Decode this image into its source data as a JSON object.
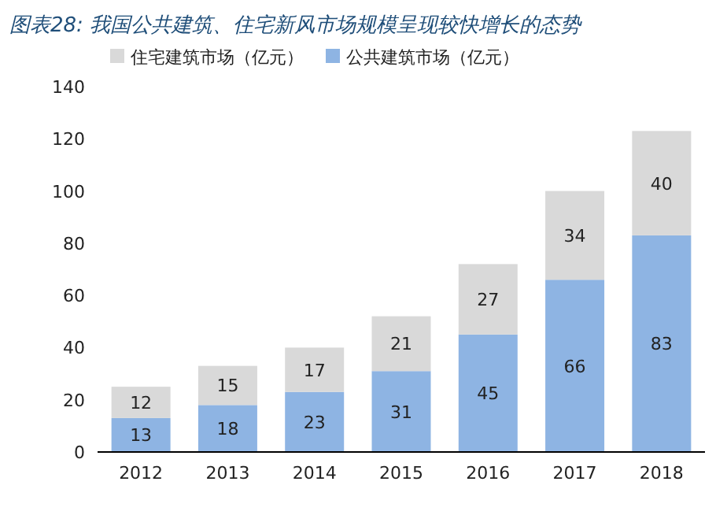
{
  "chart_data": {
    "type": "bar",
    "title": "图表28: 我国公共建筑、住宅新风市场规模呈现较快增长的态势",
    "categories": [
      "2012",
      "2013",
      "2014",
      "2015",
      "2016",
      "2017",
      "2018"
    ],
    "stacked": true,
    "series": [
      {
        "name": "公共建筑市场（亿元）",
        "color": "#8eb4e3",
        "values": [
          13,
          18,
          23,
          31,
          45,
          66,
          83
        ]
      },
      {
        "name": "住宅建筑市场（亿元）",
        "color": "#d9d9d9",
        "values": [
          12,
          15,
          17,
          21,
          27,
          34,
          40
        ]
      }
    ],
    "ylim": [
      0,
      140
    ],
    "yticks": [
      0,
      20,
      40,
      60,
      80,
      100,
      120,
      140
    ],
    "data_labels": true,
    "legend": "top left",
    "grid": false
  }
}
